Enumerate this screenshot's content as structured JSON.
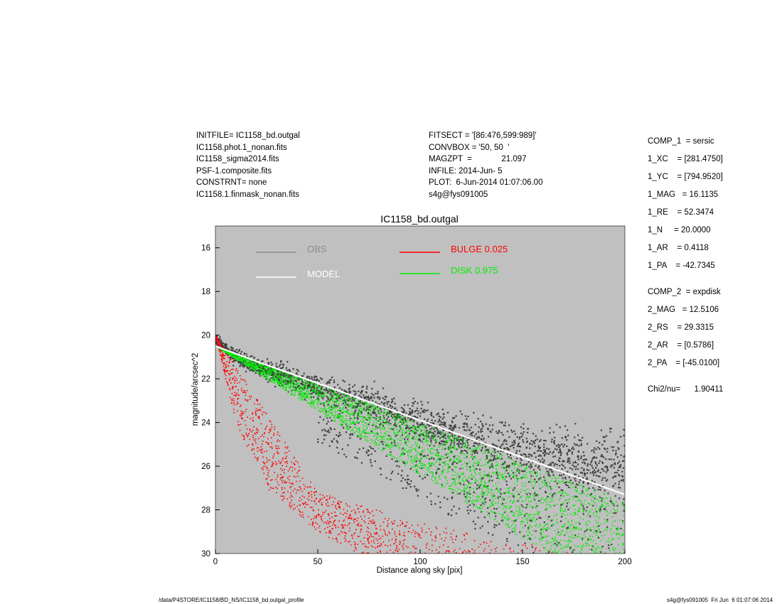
{
  "header_left": [
    "INITFILE= IC1158_bd.outgal",
    "IC1158.phot.1_nonan.fits",
    "IC1158_sigma2014.fits",
    "PSF-1.composite.fits",
    "CONSTRNT= none",
    "IC1158.1.finmask_nonan.fits"
  ],
  "header_mid": [
    "FITSECT = '[86:476,599:989]'",
    "CONVBOX = '50, 50  '",
    "MAGZPT  =             21.097",
    "INFILE: 2014-Jun- 5",
    "PLOT:  6-Jun-2014 01:07:06.00",
    "s4g@fys091005"
  ],
  "params": {
    "comp1": [
      "COMP_1  = sersic",
      "1_XC    = [281.4750]",
      "1_YC    = [794.9520]",
      "1_MAG   = 16.1135",
      "1_RE    = 52.3474",
      "1_N     = 20.0000",
      "1_AR    = 0.4118",
      "1_PA    = -42.7345"
    ],
    "comp2": [
      "COMP_2  = expdisk",
      "2_MAG   = 12.5106",
      "2_RS    = 29.3315",
      "2_AR    = [0.5786]",
      "2_PA    = [-45.0100]"
    ],
    "chi2": "Chi2/nu=      1.90411"
  },
  "footer_left": "/data/P4STORE/IC1158/BD_NS/IC1158_bd.outgal_profile",
  "footer_right": "s4g@fys091005  Fri Jun  6 01:07:06 2014",
  "chart_data": {
    "type": "scatter",
    "title": "IC1158_bd.outgal",
    "xlabel": "Distance along sky [pix]",
    "ylabel": "magnitude/arcsec^2",
    "xlim": [
      0,
      200
    ],
    "ylim": [
      30,
      15
    ],
    "y_inverted": true,
    "xticks": [
      0,
      50,
      100,
      150,
      200
    ],
    "yticks": [
      16,
      18,
      20,
      22,
      24,
      26,
      28,
      30
    ],
    "background": "#c0c0c0",
    "legend": [
      {
        "name": "OBS",
        "color": "#8c8c8c"
      },
      {
        "name": "MODEL",
        "color": "#ffffff"
      },
      {
        "name": "BULGE  0.025",
        "color": "#ff0000"
      },
      {
        "name": "DISK  0.975",
        "color": "#00ee00"
      }
    ],
    "series": [
      {
        "name": "OBS",
        "color": "#404040",
        "description_points": [
          [
            0,
            20.2
          ],
          [
            10,
            21.0
          ],
          [
            30,
            21.8
          ],
          [
            50,
            22.4
          ],
          [
            80,
            23.3
          ],
          [
            100,
            24.0
          ],
          [
            120,
            24.7
          ],
          [
            150,
            25.3
          ],
          [
            200,
            26.0
          ]
        ]
      },
      {
        "name": "MODEL",
        "color": "#ffffff",
        "points": [
          [
            0,
            20.5
          ],
          [
            20,
            21.2
          ],
          [
            50,
            22.2
          ],
          [
            100,
            23.9
          ],
          [
            150,
            25.6
          ],
          [
            200,
            27.3
          ]
        ]
      },
      {
        "name": "BULGE  0.025",
        "color": "#ff0000",
        "points_upper": [
          [
            0,
            20.0
          ],
          [
            50,
            27.2
          ],
          [
            100,
            28.6
          ],
          [
            150,
            29.5
          ],
          [
            175,
            30.0
          ]
        ],
        "points_lower": [
          [
            0,
            20.0
          ],
          [
            10,
            24.0
          ],
          [
            25,
            27.0
          ],
          [
            50,
            29.0
          ],
          [
            70,
            30.0
          ]
        ]
      },
      {
        "name": "DISK  0.975",
        "color": "#00ee00",
        "points_upper": [
          [
            0,
            20.5
          ],
          [
            50,
            22.2
          ],
          [
            100,
            24.0
          ],
          [
            150,
            25.8
          ],
          [
            200,
            27.6
          ]
        ],
        "points_lower": [
          [
            0,
            20.5
          ],
          [
            50,
            23.5
          ],
          [
            100,
            26.4
          ],
          [
            150,
            29.3
          ],
          [
            165,
            30.0
          ]
        ]
      }
    ]
  }
}
